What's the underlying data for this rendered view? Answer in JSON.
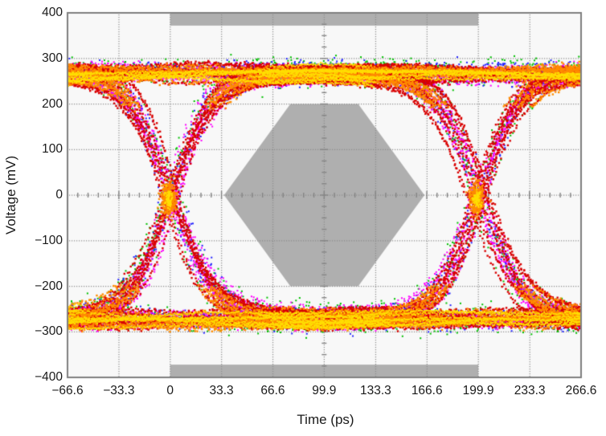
{
  "chart_data": {
    "type": "scatter",
    "subtype": "eye-diagram-with-compliance-mask",
    "title": "",
    "xlabel": "Time (ps)",
    "ylabel": "Voltage (mV)",
    "xlim": [
      -66.6,
      266.6
    ],
    "ylim": [
      -400,
      400
    ],
    "grid": true,
    "legend": false,
    "x_tick_values": [
      -66.6,
      -33.3,
      0,
      33.3,
      66.6,
      99.9,
      133.3,
      166.6,
      199.9,
      233.3,
      266.6
    ],
    "x_tick_labels": [
      "−66.6",
      "−33.3",
      "0",
      "33.3",
      "66.6",
      "99.9",
      "133.3",
      "166.6",
      "199.9",
      "233.3",
      "266.6"
    ],
    "y_tick_values": [
      400,
      300,
      200,
      100,
      0,
      -100,
      -200,
      -300,
      -400
    ],
    "y_tick_labels": [
      "400",
      "300",
      "200",
      "100",
      "0",
      "−100",
      "−200",
      "−300",
      "−400"
    ],
    "eye": {
      "unit_interval_ps": 199.9,
      "crossing_times_ps": [
        0,
        199.9
      ],
      "crossing_level_mv": -5,
      "high_rail_levels_mv": [
        252,
        264,
        276,
        287
      ],
      "low_rail_levels_mv": [
        -252,
        -264,
        -276,
        -287
      ],
      "transition_tau_ps": 26,
      "jitter_rms_ps": 2.5,
      "rail_wobble_mv": 4,
      "density_palette": [
        {
          "level": "lowest-density",
          "color": "#00c000"
        },
        {
          "level": "low-density",
          "color": "#2222ff"
        },
        {
          "level": "mid-density",
          "color": "#ff00ff"
        },
        {
          "level": "high-density",
          "color": "#d90000"
        },
        {
          "level": "higher-density",
          "color": "#ff8c00"
        },
        {
          "level": "highest-density",
          "color": "#ffdf00"
        }
      ]
    },
    "mask": {
      "color": "#afafaf",
      "center_polygon_ps_mv": [
        [
          35,
          0
        ],
        [
          78,
          200
        ],
        [
          122,
          200
        ],
        [
          165,
          0
        ],
        [
          122,
          -200
        ],
        [
          78,
          -200
        ]
      ],
      "top_bar": {
        "t0": 0,
        "t1": 199.9,
        "v0": 372,
        "v1": 400
      },
      "bottom_bar": {
        "t0": 0,
        "t1": 199.9,
        "v0": -400,
        "v1": -372
      }
    },
    "center_ruler": {
      "h_line_mv": 0,
      "v_line_ps": 99.9,
      "h_minor_step_ps": 6.66,
      "h_major_step_ps": 33.3,
      "v_minor_step_mv": 25,
      "v_major_step_mv": 100
    },
    "colors": {
      "page_bg": "#ffffff",
      "plot_bg": "#f8f8f8",
      "grid": "#8c8c8c",
      "ruler": "#858585",
      "border": "#7f7f7f",
      "text": "#1a1a1a"
    }
  }
}
